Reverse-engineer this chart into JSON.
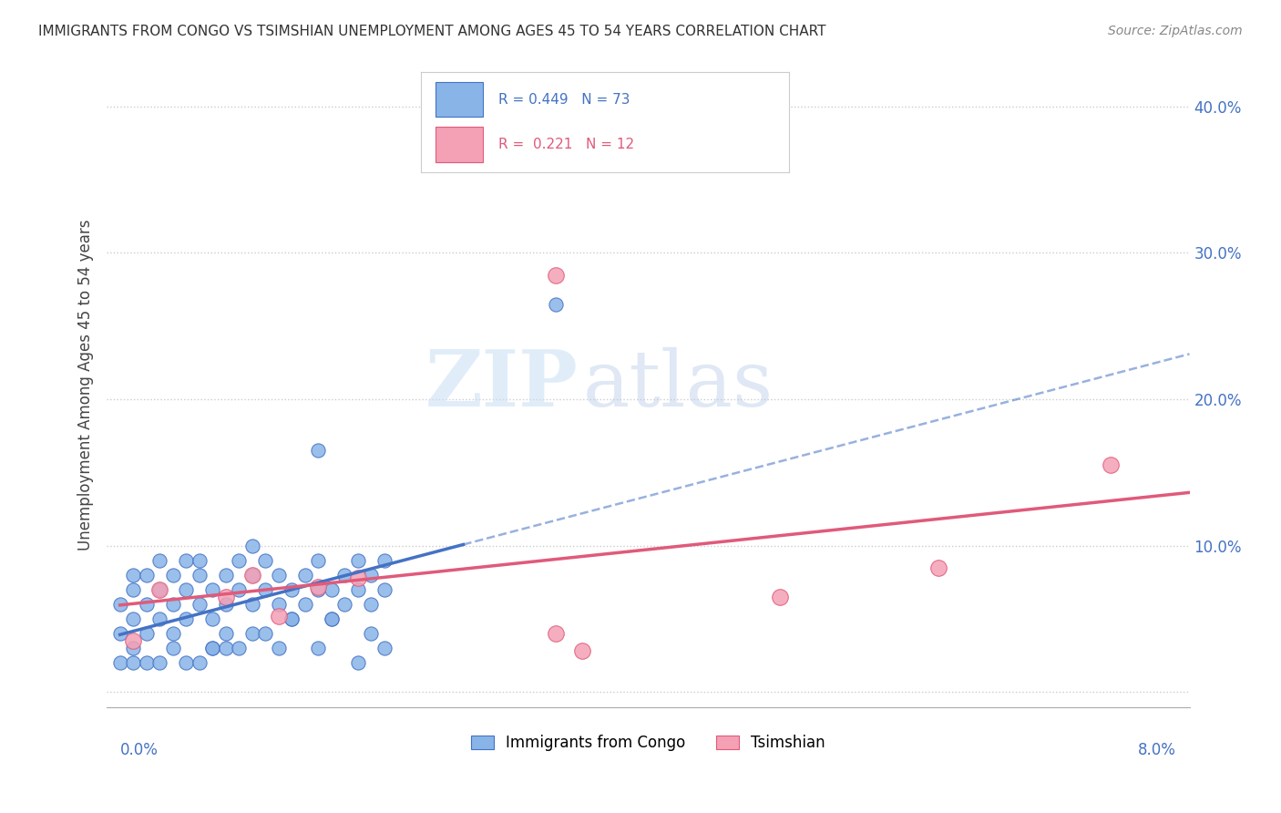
{
  "title": "IMMIGRANTS FROM CONGO VS TSIMSHIAN UNEMPLOYMENT AMONG AGES 45 TO 54 YEARS CORRELATION CHART",
  "source": "Source: ZipAtlas.com",
  "ylabel": "Unemployment Among Ages 45 to 54 years",
  "xlim": [
    0.0,
    0.08
  ],
  "ylim": [
    -0.01,
    0.43
  ],
  "yticks": [
    0.0,
    0.1,
    0.2,
    0.3,
    0.4
  ],
  "ytick_labels": [
    "",
    "10.0%",
    "20.0%",
    "30.0%",
    "40.0%"
  ],
  "congo_color": "#89b4e8",
  "tsimshian_color": "#f4a0b5",
  "congo_line_color": "#4472c4",
  "tsimshian_line_color": "#e05a7a",
  "watermark_zip": "ZIP",
  "watermark_atlas": "atlas",
  "congo_x": [
    0.0,
    0.0,
    0.0,
    0.001,
    0.001,
    0.001,
    0.001,
    0.002,
    0.002,
    0.002,
    0.003,
    0.003,
    0.003,
    0.004,
    0.004,
    0.004,
    0.005,
    0.005,
    0.005,
    0.006,
    0.006,
    0.006,
    0.007,
    0.007,
    0.007,
    0.008,
    0.008,
    0.008,
    0.009,
    0.009,
    0.01,
    0.01,
    0.01,
    0.011,
    0.011,
    0.012,
    0.012,
    0.013,
    0.013,
    0.014,
    0.014,
    0.015,
    0.015,
    0.016,
    0.016,
    0.017,
    0.017,
    0.018,
    0.018,
    0.019,
    0.019,
    0.02,
    0.02,
    0.001,
    0.002,
    0.003,
    0.004,
    0.005,
    0.006,
    0.007,
    0.008,
    0.009,
    0.01,
    0.011,
    0.012,
    0.013,
    0.015,
    0.016,
    0.018,
    0.019,
    0.02,
    0.033,
    0.015
  ],
  "congo_y": [
    0.04,
    0.02,
    0.06,
    0.05,
    0.07,
    0.08,
    0.03,
    0.06,
    0.08,
    0.04,
    0.07,
    0.09,
    0.05,
    0.06,
    0.08,
    0.04,
    0.07,
    0.09,
    0.05,
    0.06,
    0.08,
    0.09,
    0.07,
    0.05,
    0.03,
    0.06,
    0.08,
    0.04,
    0.07,
    0.09,
    0.08,
    0.06,
    0.04,
    0.07,
    0.09,
    0.06,
    0.08,
    0.05,
    0.07,
    0.06,
    0.08,
    0.07,
    0.09,
    0.05,
    0.07,
    0.06,
    0.08,
    0.07,
    0.09,
    0.06,
    0.08,
    0.07,
    0.09,
    0.02,
    0.02,
    0.02,
    0.03,
    0.02,
    0.02,
    0.03,
    0.03,
    0.03,
    0.1,
    0.04,
    0.03,
    0.05,
    0.03,
    0.05,
    0.02,
    0.04,
    0.03,
    0.265,
    0.165
  ],
  "tsimshian_x": [
    0.001,
    0.003,
    0.008,
    0.01,
    0.012,
    0.015,
    0.018,
    0.033,
    0.035,
    0.05,
    0.062,
    0.075,
    0.033
  ],
  "tsimshian_y": [
    0.035,
    0.07,
    0.065,
    0.08,
    0.052,
    0.072,
    0.078,
    0.04,
    0.028,
    0.065,
    0.085,
    0.155,
    0.285
  ]
}
